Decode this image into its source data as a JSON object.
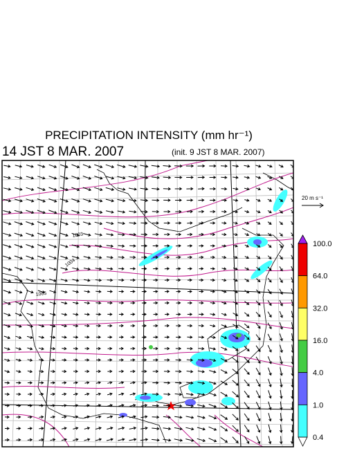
{
  "header": {
    "title": "PRECIPITATION INTENSITY (mm hr⁻¹)",
    "valid_time": "14 JST 8 MAR. 2007",
    "init_time": "(init. 9 JST 8 MAR. 2007)"
  },
  "map": {
    "isobar_labels": [
      "1003",
      "1004",
      "1005"
    ],
    "wind_scale": "20 m s⁻¹"
  },
  "colorbar": {
    "labels": [
      "100.0",
      "64.0",
      "32.0",
      "16.0",
      "4.0",
      "1.0",
      "0.4"
    ]
  }
}
